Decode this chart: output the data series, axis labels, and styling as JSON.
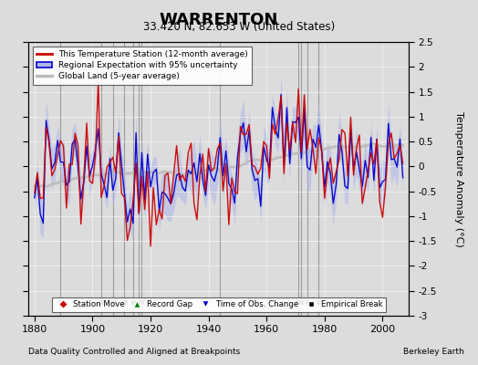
{
  "title": "WARRENTON",
  "subtitle": "33.420 N, 82.653 W (United States)",
  "ylabel": "Temperature Anomaly (°C)",
  "xlabel_left": "Data Quality Controlled and Aligned at Breakpoints",
  "xlabel_right": "Berkeley Earth",
  "ylim": [
    -3.0,
    2.5
  ],
  "xlim": [
    1878,
    2009
  ],
  "xticks": [
    1880,
    1900,
    1920,
    1940,
    1960,
    1980,
    2000
  ],
  "yticks_right": [
    -3,
    -2.5,
    -2,
    -1.5,
    -1,
    -0.5,
    0,
    0.5,
    1,
    1.5,
    2,
    2.5
  ],
  "ytick_labels_right": [
    "-3",
    "-2.5",
    "-2",
    "-1.5",
    "-1",
    "-0.5",
    "0",
    "0.5",
    "1",
    "1.5",
    "2",
    "2.5"
  ],
  "background_color": "#dcdcdc",
  "plot_bg_color": "#dcdcdc",
  "red_color": "#cc0000",
  "blue_color": "#0000cc",
  "blue_fill_color": "#b0b8e8",
  "gray_color": "#bbbbbb",
  "break_years": [
    1889,
    1903,
    1907,
    1911,
    1914,
    1916,
    1917,
    1944,
    1971,
    1972,
    1974,
    1978
  ],
  "vertical_line_color": "#888888",
  "seed": 12345,
  "n_years": 128,
  "start_year": 1880
}
